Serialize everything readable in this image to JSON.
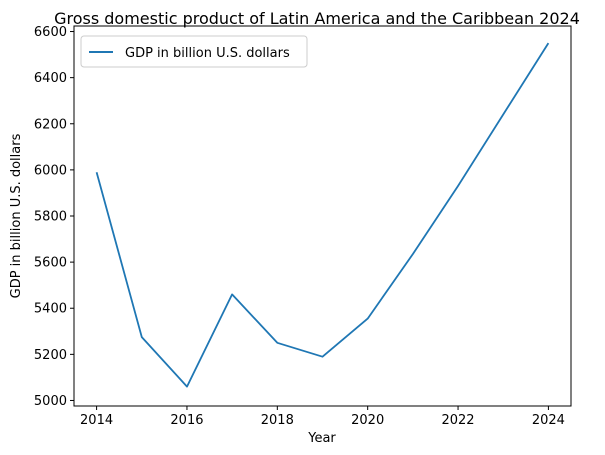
{
  "chart_data": {
    "type": "line",
    "title": "Gross domestic product of Latin America and the Caribbean 2024",
    "xlabel": "Year",
    "ylabel": "GDP in billion U.S. dollars",
    "x": [
      2014,
      2015,
      2016,
      2017,
      2018,
      2019,
      2020,
      2021,
      2022,
      2023,
      2024
    ],
    "series": [
      {
        "name": "GDP in billion U.S. dollars",
        "color": "#1f77b4",
        "values": [
          5990,
          5275,
          5060,
          5460,
          5250,
          5190,
          5355,
          5635,
          5930,
          6240,
          6550
        ]
      }
    ],
    "xlim": [
      2013.5,
      2024.5
    ],
    "ylim": [
      4976,
      6624
    ],
    "xticks": [
      2014,
      2016,
      2018,
      2020,
      2022,
      2024
    ],
    "yticks": [
      5000,
      5200,
      5400,
      5600,
      5800,
      6000,
      6200,
      6400,
      6600
    ],
    "grid": false,
    "legend_position": "top-left"
  }
}
